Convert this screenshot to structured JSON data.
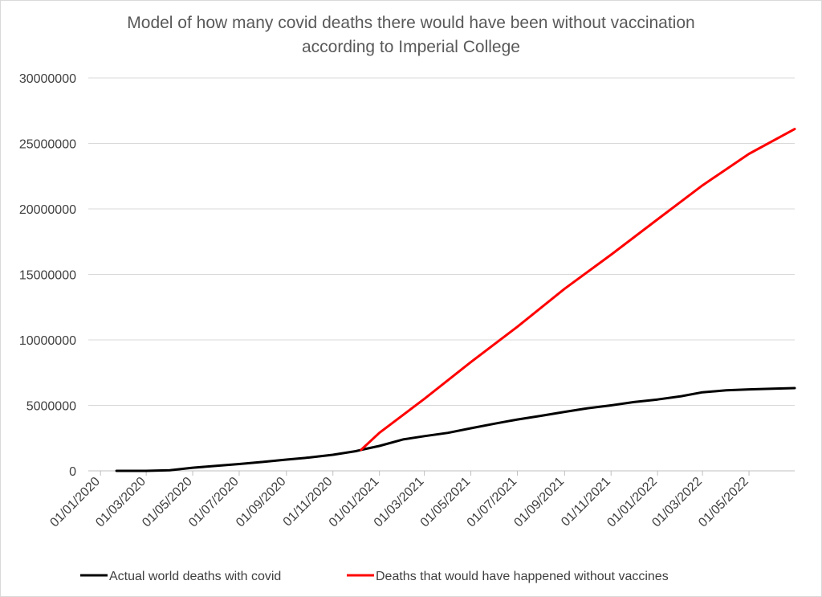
{
  "chart_data": {
    "type": "line",
    "title_lines": [
      "Model of how many covid deaths there would have been without vaccination",
      "according to Imperial College"
    ],
    "xlabel": "",
    "ylabel": "",
    "x_range": [
      "2019-12-16",
      "2022-06-30"
    ],
    "ylim": [
      0,
      30000000
    ],
    "yticks": [
      0,
      5000000,
      10000000,
      15000000,
      20000000,
      25000000,
      30000000
    ],
    "xticks": [
      {
        "date": "2020-01-01",
        "label": "01/01/2020"
      },
      {
        "date": "2020-03-01",
        "label": "01/03/2020"
      },
      {
        "date": "2020-05-01",
        "label": "01/05/2020"
      },
      {
        "date": "2020-07-01",
        "label": "01/07/2020"
      },
      {
        "date": "2020-09-01",
        "label": "01/09/2020"
      },
      {
        "date": "2020-11-01",
        "label": "01/11/2020"
      },
      {
        "date": "2021-01-01",
        "label": "01/01/2021"
      },
      {
        "date": "2021-03-01",
        "label": "01/03/2021"
      },
      {
        "date": "2021-05-01",
        "label": "01/05/2021"
      },
      {
        "date": "2021-07-01",
        "label": "01/07/2021"
      },
      {
        "date": "2021-09-01",
        "label": "01/09/2021"
      },
      {
        "date": "2021-11-01",
        "label": "01/11/2021"
      },
      {
        "date": "2022-01-01",
        "label": "01/01/2022"
      },
      {
        "date": "2022-03-01",
        "label": "01/03/2022"
      },
      {
        "date": "2022-05-01",
        "label": "01/05/2022"
      }
    ],
    "grid": true,
    "legend_position": "bottom",
    "series": [
      {
        "name": "Actual world deaths with covid",
        "color": "#000000",
        "points": [
          [
            "2020-01-22",
            0
          ],
          [
            "2020-03-01",
            3000
          ],
          [
            "2020-04-01",
            50000
          ],
          [
            "2020-05-01",
            240000
          ],
          [
            "2020-06-01",
            380000
          ],
          [
            "2020-07-01",
            520000
          ],
          [
            "2020-08-01",
            680000
          ],
          [
            "2020-09-01",
            860000
          ],
          [
            "2020-10-01",
            1020000
          ],
          [
            "2020-11-01",
            1230000
          ],
          [
            "2020-12-01",
            1500000
          ],
          [
            "2020-12-08",
            1600000
          ],
          [
            "2021-01-01",
            1900000
          ],
          [
            "2021-02-01",
            2400000
          ],
          [
            "2021-03-01",
            2650000
          ],
          [
            "2021-04-01",
            2900000
          ],
          [
            "2021-05-01",
            3250000
          ],
          [
            "2021-06-01",
            3600000
          ],
          [
            "2021-07-01",
            3920000
          ],
          [
            "2021-08-01",
            4200000
          ],
          [
            "2021-09-01",
            4500000
          ],
          [
            "2021-10-01",
            4780000
          ],
          [
            "2021-11-01",
            5000000
          ],
          [
            "2021-12-01",
            5250000
          ],
          [
            "2022-01-01",
            5450000
          ],
          [
            "2022-02-01",
            5700000
          ],
          [
            "2022-03-01",
            6000000
          ],
          [
            "2022-04-01",
            6150000
          ],
          [
            "2022-05-01",
            6220000
          ],
          [
            "2022-06-01",
            6270000
          ],
          [
            "2022-06-30",
            6320000
          ]
        ]
      },
      {
        "name": "Deaths that would have happened without vaccines",
        "color": "#ff0000",
        "points": [
          [
            "2020-12-08",
            1600000
          ],
          [
            "2021-01-01",
            2900000
          ],
          [
            "2021-03-01",
            5500000
          ],
          [
            "2021-05-01",
            8300000
          ],
          [
            "2021-07-01",
            11000000
          ],
          [
            "2021-09-01",
            13900000
          ],
          [
            "2021-11-01",
            16500000
          ],
          [
            "2022-01-01",
            19200000
          ],
          [
            "2022-03-01",
            21800000
          ],
          [
            "2022-05-01",
            24200000
          ],
          [
            "2022-06-30",
            26100000
          ]
        ]
      }
    ]
  }
}
